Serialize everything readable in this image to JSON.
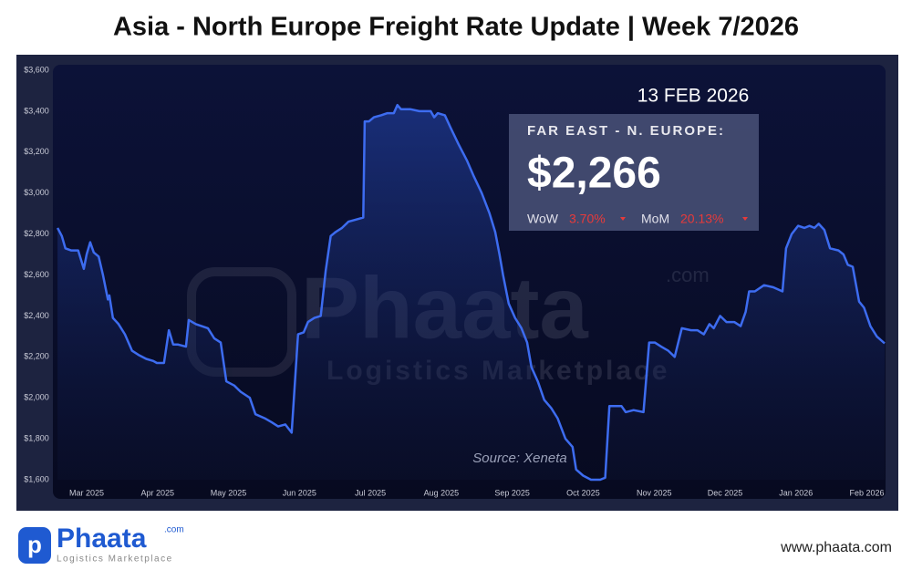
{
  "chart_data": {
    "type": "line",
    "title": "Asia - North Europe Freight Rate Update | Week 7/2026",
    "date_label": "13 FEB 2026",
    "box": {
      "heading": "FAR EAST - N. EUROPE:",
      "price": "$2,266",
      "wow_label": "WoW",
      "wow": "3.70%",
      "mom_label": "MoM",
      "mom": "20.13%"
    },
    "source": "Source: Xeneta",
    "watermark": {
      "brand": "Phaata",
      "domain": ".com",
      "tagline": "Logistics Marketplace"
    },
    "footer": {
      "brand": "Phaata",
      "domain": ".com",
      "tagline": "Logistics Marketplace",
      "url": "www.phaata.com"
    },
    "color": "#3d6cf0",
    "x": [
      0.59,
      0.65,
      0.7,
      0.78,
      0.88,
      0.96,
      1.0,
      1.05,
      1.1,
      1.17,
      1.23,
      1.3,
      1.32,
      1.37,
      1.45,
      1.54,
      1.64,
      1.73,
      1.84,
      1.94,
      1.99,
      2.09,
      2.16,
      2.22,
      2.29,
      2.4,
      2.44,
      2.54,
      2.71,
      2.8,
      2.89,
      2.97,
      3.08,
      3.17,
      3.3,
      3.38,
      3.51,
      3.61,
      3.7,
      3.8,
      3.89,
      3.98,
      4.06,
      4.12,
      4.21,
      4.3,
      4.37,
      4.44,
      4.51,
      4.6,
      4.69,
      4.79,
      4.9,
      4.92,
      4.98,
      5.05,
      5.15,
      5.24,
      5.33,
      5.38,
      5.43,
      5.56,
      5.69,
      5.85,
      5.9,
      5.95,
      6.05,
      6.13,
      6.24,
      6.36,
      6.46,
      6.57,
      6.68,
      6.76,
      6.82,
      6.87,
      6.95,
      7.04,
      7.13,
      7.21,
      7.27,
      7.36,
      7.45,
      7.55,
      7.64,
      7.75,
      7.85,
      7.9,
      8.0,
      8.11,
      8.24,
      8.31,
      8.37,
      8.54,
      8.6,
      8.71,
      8.85,
      8.93,
      9.01,
      9.1,
      9.2,
      9.29,
      9.39,
      9.52,
      9.61,
      9.7,
      9.78,
      9.84,
      9.93,
      10.02,
      10.13,
      10.22,
      10.29,
      10.34,
      10.42,
      10.55,
      10.68,
      10.81,
      10.86,
      10.94,
      11.03,
      11.12,
      11.19,
      11.26,
      11.32,
      11.4,
      11.48,
      11.6,
      11.67,
      11.73,
      11.8,
      11.89,
      11.96,
      12.05,
      12.14,
      12.25
    ],
    "values": [
      2830,
      2790,
      2730,
      2720,
      2720,
      2630,
      2700,
      2760,
      2710,
      2690,
      2600,
      2480,
      2500,
      2390,
      2360,
      2310,
      2230,
      2210,
      2190,
      2180,
      2170,
      2170,
      2330,
      2260,
      2260,
      2250,
      2380,
      2360,
      2340,
      2290,
      2270,
      2080,
      2060,
      2030,
      2000,
      1920,
      1900,
      1880,
      1860,
      1870,
      1830,
      2310,
      2320,
      2370,
      2390,
      2400,
      2620,
      2790,
      2810,
      2830,
      2860,
      2870,
      2880,
      3350,
      3350,
      3370,
      3380,
      3390,
      3390,
      3430,
      3410,
      3410,
      3400,
      3400,
      3370,
      3390,
      3380,
      3320,
      3240,
      3160,
      3080,
      3000,
      2900,
      2810,
      2700,
      2600,
      2460,
      2390,
      2340,
      2270,
      2150,
      2080,
      1990,
      1950,
      1900,
      1800,
      1760,
      1650,
      1620,
      1600,
      1600,
      1610,
      1960,
      1960,
      1930,
      1940,
      1930,
      2270,
      2270,
      2250,
      2230,
      2200,
      2340,
      2330,
      2330,
      2310,
      2360,
      2340,
      2400,
      2370,
      2370,
      2350,
      2420,
      2520,
      2520,
      2550,
      2540,
      2520,
      2730,
      2800,
      2840,
      2830,
      2840,
      2830,
      2850,
      2820,
      2730,
      2720,
      2700,
      2650,
      2640,
      2470,
      2440,
      2350,
      2300,
      2266
    ],
    "xlim": [
      0.55,
      12.25
    ],
    "xticks": [
      {
        "value": 1,
        "label": "Mar 2025"
      },
      {
        "value": 2,
        "label": "Apr 2025"
      },
      {
        "value": 3,
        "label": "May 2025"
      },
      {
        "value": 4,
        "label": "Jun 2025"
      },
      {
        "value": 5,
        "label": "Jul 2025"
      },
      {
        "value": 6,
        "label": "Aug 2025"
      },
      {
        "value": 7,
        "label": "Sep 2025"
      },
      {
        "value": 8,
        "label": "Oct 2025"
      },
      {
        "value": 9,
        "label": "Nov 2025"
      },
      {
        "value": 10,
        "label": "Dec 2025"
      },
      {
        "value": 11,
        "label": "Jan 2026"
      },
      {
        "value": 12,
        "label": "Feb 2026"
      }
    ],
    "ylim": [
      1600,
      3600
    ],
    "yticks": [
      {
        "value": 1600,
        "label": "$1,600"
      },
      {
        "value": 1800,
        "label": "$1,800"
      },
      {
        "value": 2000,
        "label": "$2,000"
      },
      {
        "value": 2200,
        "label": "$2,200"
      },
      {
        "value": 2400,
        "label": "$2,400"
      },
      {
        "value": 2600,
        "label": "$2,600"
      },
      {
        "value": 2800,
        "label": "$2,800"
      },
      {
        "value": 3000,
        "label": "$3,000"
      },
      {
        "value": 3200,
        "label": "$3,200"
      },
      {
        "value": 3400,
        "label": "$3,400"
      },
      {
        "value": 3600,
        "label": "$3,600"
      }
    ],
    "grid": false
  }
}
